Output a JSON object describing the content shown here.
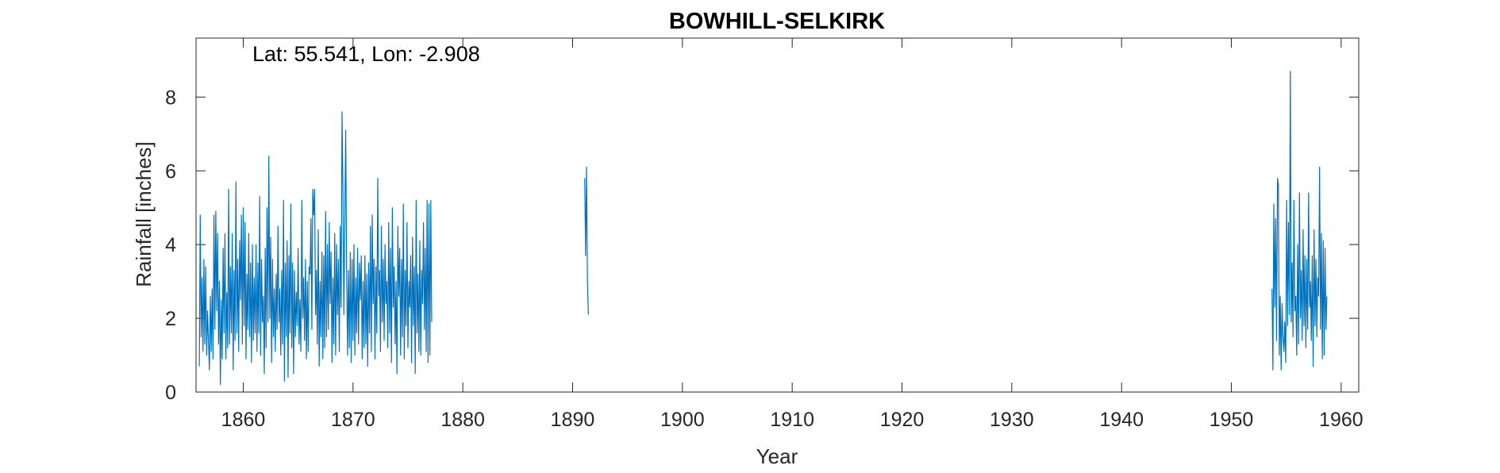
{
  "chart_data": {
    "type": "line",
    "title": "BOWHILL-SELKIRK",
    "xlabel": "Year",
    "ylabel": "Rainfall [inches]",
    "annotation": "Lat: 55.541, Lon: -2.908",
    "xlim": [
      1855.7,
      1961.6
    ],
    "ylim": [
      0,
      9.6
    ],
    "xticks": [
      1860,
      1870,
      1880,
      1890,
      1900,
      1910,
      1920,
      1930,
      1940,
      1950,
      1960
    ],
    "yticks": [
      0,
      2,
      4,
      6,
      8
    ],
    "grid": false,
    "line_color": "#0072BD",
    "series": [
      {
        "values_note": "monthly rainfall",
        "segments": [
          {
            "start": 1856.0,
            "step": 0.08333,
            "values": [
              0.7,
              4.8,
              1.5,
              3.1,
              1.1,
              3.6,
              1.3,
              3.4,
              1.0,
              2.2,
              1.4,
              0.6,
              2.6,
              1.1,
              2.8,
              0.9,
              4.8,
              1.7,
              4.9,
              2.2,
              4.3,
              1.3,
              3.0,
              0.2,
              2.5,
              0.9,
              3.9,
              1.6,
              4.3,
              0.9,
              2.7,
              1.2,
              5.5,
              1.3,
              3.4,
              1.6,
              4.3,
              0.6,
              3.3,
              1.4,
              5.7,
              1.6,
              3.6,
              1.1,
              4.1,
              2.5,
              4.8,
              1.3,
              5.0,
              1.8,
              4.6,
              0.9,
              3.2,
              1.7,
              4.3,
              1.5,
              3.5,
              0.8,
              4.0,
              1.4,
              3.1,
              1.6,
              4.0,
              1.1,
              3.5,
              1.6,
              5.3,
              1.0,
              3.6,
              1.9,
              2.6,
              0.5,
              3.9,
              1.2,
              5.0,
              1.9,
              6.4,
              2.0,
              4.2,
              0.8,
              3.6,
              1.5,
              2.8,
              1.1,
              3.2,
              1.7,
              4.5,
              1.9,
              2.8,
              1.0,
              3.3,
              1.3,
              5.2,
              0.3,
              3.5,
              1.5,
              4.1,
              0.4,
              3.7,
              1.6,
              5.1,
              1.2,
              3.5,
              0.5,
              3.3,
              1.5,
              2.7,
              1.8,
              3.9,
              1.3,
              2.5,
              1.1,
              5.2,
              2.0,
              3.1,
              1.4,
              3.6,
              0.9,
              3.0,
              1.1,
              3.4,
              3.2,
              4.7,
              1.7,
              5.5,
              4.8,
              5.5,
              2.1,
              3.3,
              1.3,
              4.4,
              0.7,
              3.0,
              1.5,
              3.8,
              0.9,
              3.7,
              1.2,
              4.9,
              1.5,
              4.0,
              1.7,
              4.6,
              2.4,
              3.8,
              0.8,
              3.1,
              1.3,
              4.3,
              1.0,
              4.0,
              2.1,
              3.6,
              1.1,
              4.5,
              2.3,
              7.6,
              5.4,
              2.1,
              4.6,
              7.1,
              3.3,
              1.0,
              3.3,
              1.2,
              3.8,
              0.8,
              3.6,
              1.4,
              4.0,
              1.0,
              3.1,
              1.6,
              3.9,
              1.3,
              3.5,
              2.5,
              3.7,
              0.9,
              3.0,
              1.2,
              3.7,
              1.3,
              3.2,
              0.7,
              3.5,
              1.6,
              4.5,
              1.1,
              4.8,
              2.4,
              3.6,
              0.9,
              3.4,
              1.6,
              5.8,
              2.6,
              3.3,
              1.1,
              4.5,
              1.9,
              3.6,
              1.4,
              4.0,
              2.4,
              3.0,
              1.2,
              4.6,
              1.6,
              3.9,
              0.8,
              5.0,
              2.3,
              3.4,
              1.3,
              3.0,
              0.5,
              4.5,
              2.6,
              3.9,
              1.0,
              3.6,
              1.5,
              5.1,
              0.9,
              3.3,
              1.8,
              4.6,
              1.2,
              3.0,
              2.3,
              3.7,
              0.8,
              4.2,
              1.8,
              3.4,
              0.5,
              5.2,
              1.6,
              3.2,
              1.1,
              4.1,
              1.0,
              3.3,
              2.4,
              4.6,
              1.7,
              3.9,
              1.1,
              5.2,
              0.8,
              5.1,
              1.0,
              5.2,
              1.9
            ]
          },
          {
            "start": 1891.1,
            "step": 0.08333,
            "values": [
              5.8,
              3.7,
              6.1,
              3.0,
              2.1
            ]
          },
          {
            "start": 1953.7,
            "step": 0.08333,
            "values": [
              2.8,
              0.6,
              5.1,
              2.3,
              4.7,
              1.4,
              5.8,
              5.6,
              1.0,
              2.6,
              0.6,
              2.4,
              1.5,
              1.1,
              1.9,
              0.8,
              5.2,
              1.8,
              4.6,
              2.1,
              8.7,
              1.9,
              3.5,
              1.5,
              5.2,
              2.2,
              2.6,
              1.0,
              4.0,
              1.3,
              5.4,
              2.0,
              3.3,
              1.4,
              4.4,
              1.8,
              3.7,
              1.2,
              3.6,
              1.7,
              5.4,
              2.3,
              3.0,
              1.4,
              3.7,
              0.7,
              4.4,
              1.8,
              3.6,
              1.5,
              3.1,
              2.6,
              6.1,
              1.7,
              4.3,
              0.9,
              4.1,
              1.0,
              3.9,
              1.7,
              2.6
            ]
          }
        ]
      }
    ]
  }
}
